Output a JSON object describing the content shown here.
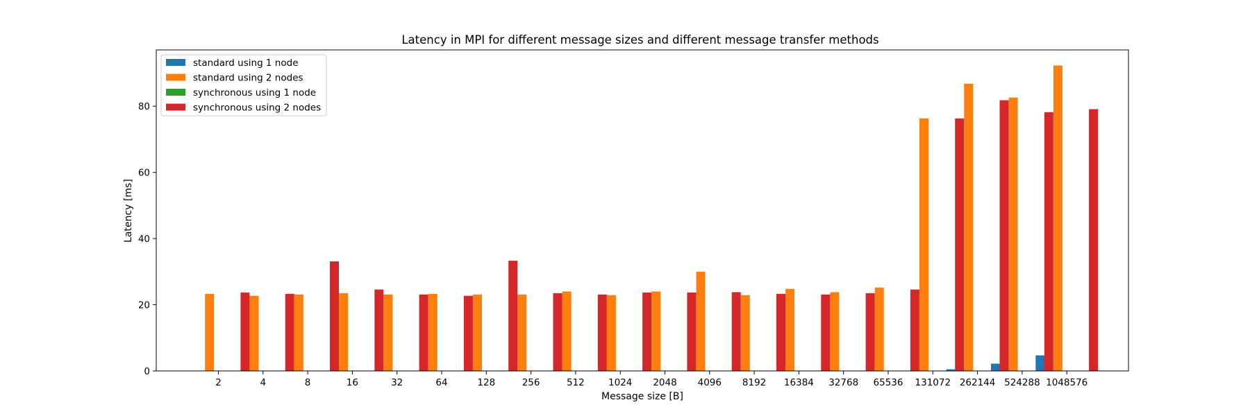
{
  "chart_data": {
    "type": "bar",
    "title": "Latency in MPI for different message sizes and different message transfer methods",
    "xlabel": "Message size [B]",
    "ylabel": "Latency [ms]",
    "ylim": [
      0,
      97
    ],
    "yticks": [
      0,
      20,
      40,
      60,
      80
    ],
    "grid": false,
    "legend_position": "top-left",
    "categories": [
      "2",
      "4",
      "8",
      "16",
      "32",
      "64",
      "128",
      "256",
      "512",
      "1024",
      "2048",
      "4096",
      "8192",
      "16384",
      "32768",
      "65536",
      "131072",
      "262144",
      "524288",
      "1048576"
    ],
    "series": [
      {
        "name": "standard using 1 node",
        "color": "#1f77b4",
        "values": [
          0.05,
          0.05,
          0.05,
          0.05,
          0.05,
          0.05,
          0.05,
          0.05,
          0.05,
          0.05,
          0.05,
          0.05,
          0.05,
          0.05,
          0.05,
          0.05,
          0.1,
          0.5,
          2.2,
          4.7
        ]
      },
      {
        "name": "standard using 2 nodes",
        "color": "#ff7f0e",
        "values": [
          23.3,
          22.7,
          23.1,
          23.5,
          23.1,
          23.3,
          23.1,
          23.1,
          24.0,
          22.9,
          24.0,
          30.0,
          22.9,
          24.8,
          23.8,
          25.2,
          76.3,
          86.8,
          82.6,
          92.3
        ]
      },
      {
        "name": "synchronous using 1 node",
        "color": "#2ca02c",
        "values": [
          0.05,
          0.05,
          0.05,
          0.05,
          0.05,
          0.05,
          0.05,
          0.05,
          0.05,
          0.05,
          0.05,
          0.05,
          0.05,
          0.05,
          0.05,
          0.05,
          0.1,
          0.1,
          0.1,
          0.1
        ]
      },
      {
        "name": "synchronous using 2 nodes",
        "color": "#d62728",
        "values": [
          23.7,
          23.3,
          33.1,
          24.6,
          23.1,
          22.7,
          33.3,
          23.5,
          23.1,
          23.7,
          23.7,
          23.8,
          23.3,
          23.1,
          23.5,
          24.6,
          76.3,
          81.8,
          78.2,
          79.1
        ]
      }
    ]
  }
}
